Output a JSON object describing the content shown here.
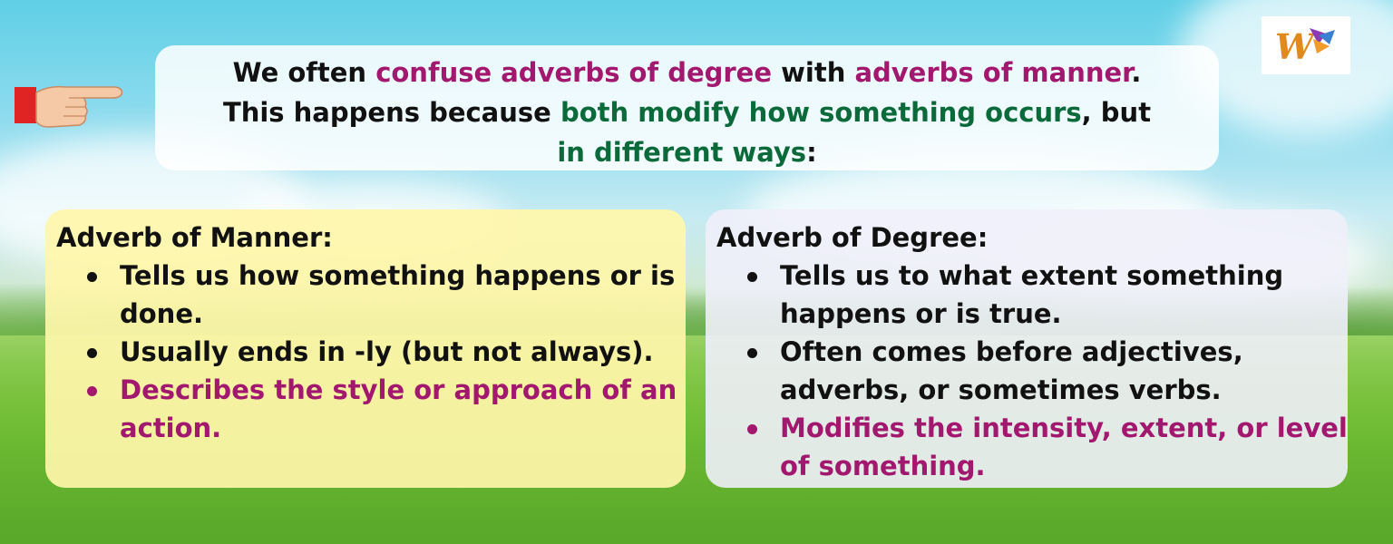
{
  "intro": {
    "line1": {
      "a": "We often ",
      "b": "confuse adverbs of degree",
      "c": " with ",
      "d": "adverbs of manner",
      "e": "."
    },
    "line2": {
      "a": "This happens because ",
      "b": "both modify how something occurs",
      "c": ", but"
    },
    "line3": {
      "a": "in different ways",
      "b": ":"
    }
  },
  "manner": {
    "title": "Adverb of Manner:",
    "items": [
      "Tells us how something happens or is done.",
      "Usually ends in -ly (but not always).",
      "Describes the style or approach of an action."
    ]
  },
  "degree": {
    "title": "Adverb of Degree:",
    "items": [
      "Tells us to what extent something happens or is true.",
      "Often comes before adjectives, adverbs, or sometimes verbs.",
      "Modifies the intensity, extent, or level of something."
    ]
  },
  "icons": {
    "pointer": "pointing-hand-icon",
    "logo": "w-logo-icon"
  },
  "colors": {
    "highlight_pink": "#a3186f",
    "highlight_green": "#0b6a3a",
    "manner_card": "#fff6aa",
    "degree_card": "#f0f0fa"
  }
}
